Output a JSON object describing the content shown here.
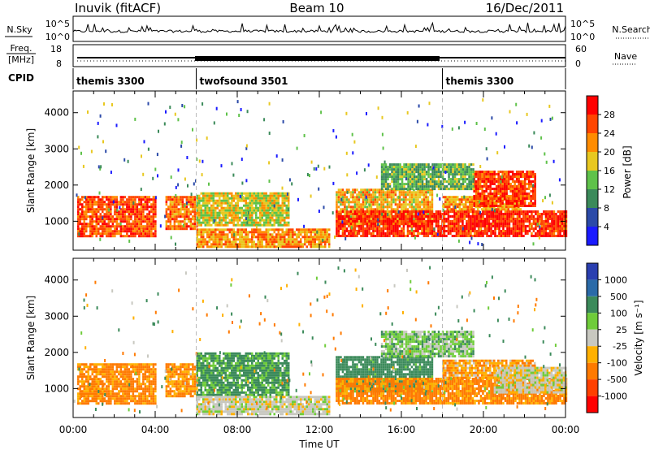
{
  "header": {
    "station": "Inuvik (fitACF)",
    "beam": "Beam 10",
    "date": "16/Dec/2011"
  },
  "status_panels": {
    "nsky_label": "N.Sky",
    "nsearch_label": "N.Search",
    "nsky_ticks": [
      "10^5",
      "10^0"
    ],
    "nsearch_ticks": [
      "10^5",
      "10^0"
    ],
    "freq_label_1": "Freq.",
    "freq_label_2": "[MHz]",
    "freq_ticks": [
      "18",
      "8"
    ],
    "nave_label": "Nave",
    "nave_ticks": [
      "60",
      "0"
    ],
    "cpid_label": "CPID",
    "cpid_segments": [
      {
        "name": "themis 3300",
        "start_h": 0,
        "end_h": 6
      },
      {
        "name": "twofsound 3501",
        "start_h": 6,
        "end_h": 18
      },
      {
        "name": "themis 3300",
        "start_h": 18,
        "end_h": 24
      }
    ]
  },
  "chart_data": [
    {
      "type": "heatmap",
      "title": "",
      "xlabel": "Time UT",
      "ylabel": "Slant Range [km]",
      "xlim": [
        0,
        24
      ],
      "ylim": [
        200,
        4600
      ],
      "xticks": [
        "00:00",
        "04:00",
        "08:00",
        "12:00",
        "16:00",
        "20:00",
        "00:00"
      ],
      "xtick_values": [
        0,
        4,
        8,
        12,
        16,
        20,
        24
      ],
      "yticks": [
        "1000",
        "2000",
        "3000",
        "4000"
      ],
      "ytick_values": [
        1000,
        2000,
        3000,
        4000
      ],
      "colorbar_label": "Power [dB]",
      "colorbar_ticks": [
        "4",
        "8",
        "12",
        "16",
        "20",
        "24",
        "28"
      ],
      "colorbar_range": [
        0,
        32
      ],
      "colors": [
        "#1a1aff",
        "#2b4aa8",
        "#3b8a5a",
        "#5fc24a",
        "#e8c820",
        "#ff8c00",
        "#ff4500",
        "#ff0000"
      ],
      "regions": [
        {
          "t0": 0.2,
          "t1": 4.0,
          "r0": 600,
          "r1": 1700,
          "value": 26
        },
        {
          "t0": 4.5,
          "t1": 6.0,
          "r0": 800,
          "r1": 1700,
          "value": 24
        },
        {
          "t0": 6.0,
          "t1": 10.5,
          "r0": 900,
          "r1": 1800,
          "value": 17
        },
        {
          "t0": 6.0,
          "t1": 12.5,
          "r0": 300,
          "r1": 800,
          "value": 22
        },
        {
          "t0": 12.8,
          "t1": 17.5,
          "r0": 900,
          "r1": 1900,
          "value": 20
        },
        {
          "t0": 12.8,
          "t1": 24.0,
          "r0": 600,
          "r1": 1300,
          "value": 28
        },
        {
          "t0": 18.0,
          "t1": 21.8,
          "r0": 1300,
          "r1": 1700,
          "value": 21
        },
        {
          "t0": 19.5,
          "t1": 22.5,
          "r0": 1400,
          "r1": 2400,
          "value": 27
        },
        {
          "t0": 15.0,
          "t1": 19.5,
          "r0": 1900,
          "r1": 2600,
          "value": 13
        }
      ]
    },
    {
      "type": "heatmap",
      "title": "",
      "xlabel": "Time UT",
      "ylabel": "Slant Range [km]",
      "xlim": [
        0,
        24
      ],
      "ylim": [
        200,
        4600
      ],
      "xticks": [
        "00:00",
        "04:00",
        "08:00",
        "12:00",
        "16:00",
        "20:00",
        "00:00"
      ],
      "xtick_values": [
        0,
        4,
        8,
        12,
        16,
        20,
        24
      ],
      "yticks": [
        "1000",
        "2000",
        "3000",
        "4000"
      ],
      "ytick_values": [
        1000,
        2000,
        3000,
        4000
      ],
      "colorbar_label": "Velocity [m s⁻¹]",
      "colorbar_ticks": [
        "1000",
        "500",
        "100",
        "25",
        "-25",
        "-100",
        "-500",
        "-1000"
      ],
      "colors": [
        "#2a3fb0",
        "#2a6aa8",
        "#3b8a5a",
        "#6fcc3a",
        "#c8c8c0",
        "#ffb000",
        "#ff7a00",
        "#ff4000",
        "#ff0000"
      ],
      "regions": [
        {
          "t0": 0.2,
          "t1": 4.0,
          "r0": 600,
          "r1": 1700,
          "value": -150
        },
        {
          "t0": 4.5,
          "t1": 6.0,
          "r0": 800,
          "r1": 1700,
          "value": -120
        },
        {
          "t0": 6.0,
          "t1": 10.5,
          "r0": 800,
          "r1": 2000,
          "value": 150
        },
        {
          "t0": 6.0,
          "t1": 12.5,
          "r0": 300,
          "r1": 800,
          "value": 0
        },
        {
          "t0": 12.8,
          "t1": 17.5,
          "r0": 900,
          "r1": 1900,
          "value": 250
        },
        {
          "t0": 12.8,
          "t1": 24.0,
          "r0": 600,
          "r1": 1300,
          "value": -150
        },
        {
          "t0": 18.0,
          "t1": 22.5,
          "r0": 1300,
          "r1": 1800,
          "value": -80
        },
        {
          "t0": 20.5,
          "t1": 24.0,
          "r0": 900,
          "r1": 1600,
          "value": 0
        },
        {
          "t0": 15.0,
          "t1": 19.5,
          "r0": 1900,
          "r1": 2600,
          "value": 60
        }
      ]
    }
  ]
}
